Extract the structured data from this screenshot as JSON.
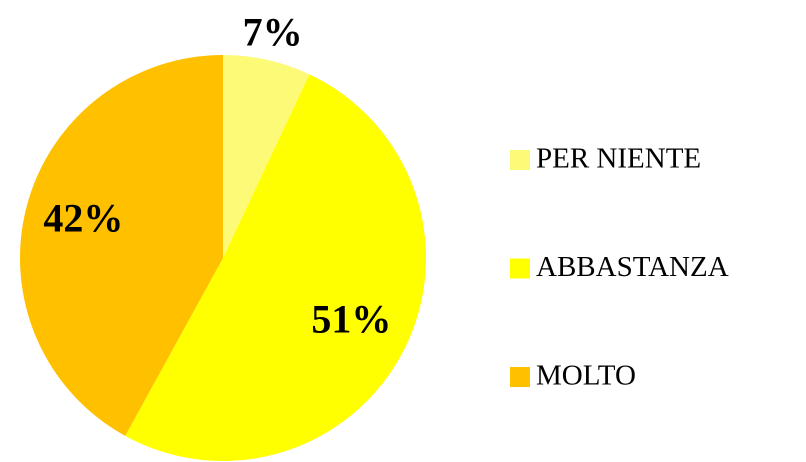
{
  "chart_data": {
    "type": "pie",
    "categories": [
      "PER NIENTE",
      "ABBASTANZA",
      "MOLTO"
    ],
    "values": [
      7,
      51,
      42
    ],
    "value_labels": [
      "7%",
      "51%",
      "42%"
    ],
    "colors": [
      "#fdfa78",
      "#ffff00",
      "#ffc000"
    ],
    "legend": "right"
  }
}
